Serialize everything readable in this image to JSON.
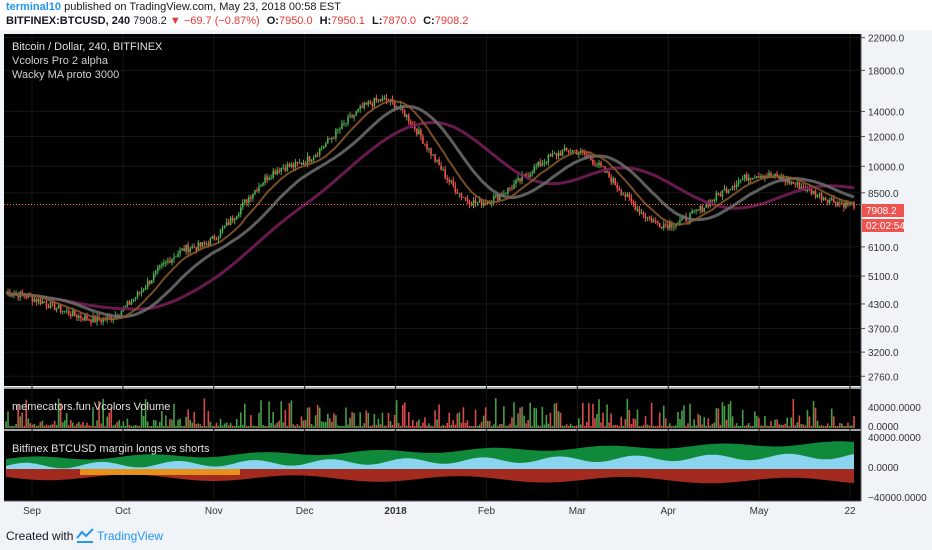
{
  "header": {
    "author": "terminal10",
    "published_text": "published on TradingView.com, May 23, 2018 00:58 EST",
    "symbol": "BITFINEX:BTCUSD, 240",
    "last": "7908.2",
    "change": "−69.7 (−0.87%)",
    "open_label": "O:",
    "open": "7950.0",
    "high_label": "H:",
    "high": "7950.1",
    "low_label": "L:",
    "low": "7870.0",
    "close_label": "C:",
    "close": "7908.2"
  },
  "legend": {
    "title": "Bitcoin / Dollar, 240, BITFINEX",
    "indicator1": "Vcolors Pro 2 alpha",
    "indicator2": "Wacky MA proto 3000"
  },
  "volume_pane": {
    "label": "memecators.fun Vcolors Volume",
    "axis": [
      "40000.0000",
      "0.0000"
    ]
  },
  "margin_pane": {
    "label": "Bitfinex BTCUSD margin longs vs shorts",
    "axis": [
      "40000.0000",
      "0.0000",
      "−40000.0000"
    ]
  },
  "price_axis": {
    "ticks": [
      "22000.0",
      "18000.0",
      "14000.0",
      "12000.0",
      "10000.0",
      "8500.0",
      "6100.0",
      "5100.0",
      "4300.0",
      "3700.0",
      "3200.0",
      "2760.0"
    ],
    "last_price": "7908.2",
    "countdown": "02:02:54"
  },
  "time_axis": [
    "Sep",
    "Oct",
    "Nov",
    "Dec",
    "2018",
    "Feb",
    "Mar",
    "Apr",
    "May",
    "22"
  ],
  "colors": {
    "background": "#000000",
    "up": "#4caf50",
    "down": "#ef5350",
    "ma_fast": "#8d5a2a",
    "ma_slow": "#6e6e6e",
    "ma_long": "#7a1f5c",
    "longs": "#0f8a3a",
    "longs_light": "#8ad4f0",
    "shorts": "#a32a1e",
    "shorts_orange": "#e8911a",
    "label_red": "#ef5350"
  },
  "chart_data": {
    "type": "line",
    "title": "Bitcoin / Dollar, 240, BITFINEX",
    "x": [
      "Sep",
      "Oct",
      "Nov",
      "Dec",
      "2018",
      "Feb",
      "Mar",
      "Apr",
      "May",
      "22"
    ],
    "series": [
      {
        "name": "Bitcoin / Dollar",
        "values": [
          4600,
          3900,
          6100,
          10000,
          15000,
          8000,
          11000,
          7000,
          9500,
          7908.2
        ]
      }
    ],
    "y_scale": "log",
    "ylim": [
      2600,
      22500
    ]
  },
  "footer": {
    "created": "Created with",
    "brand": "TradingView"
  }
}
